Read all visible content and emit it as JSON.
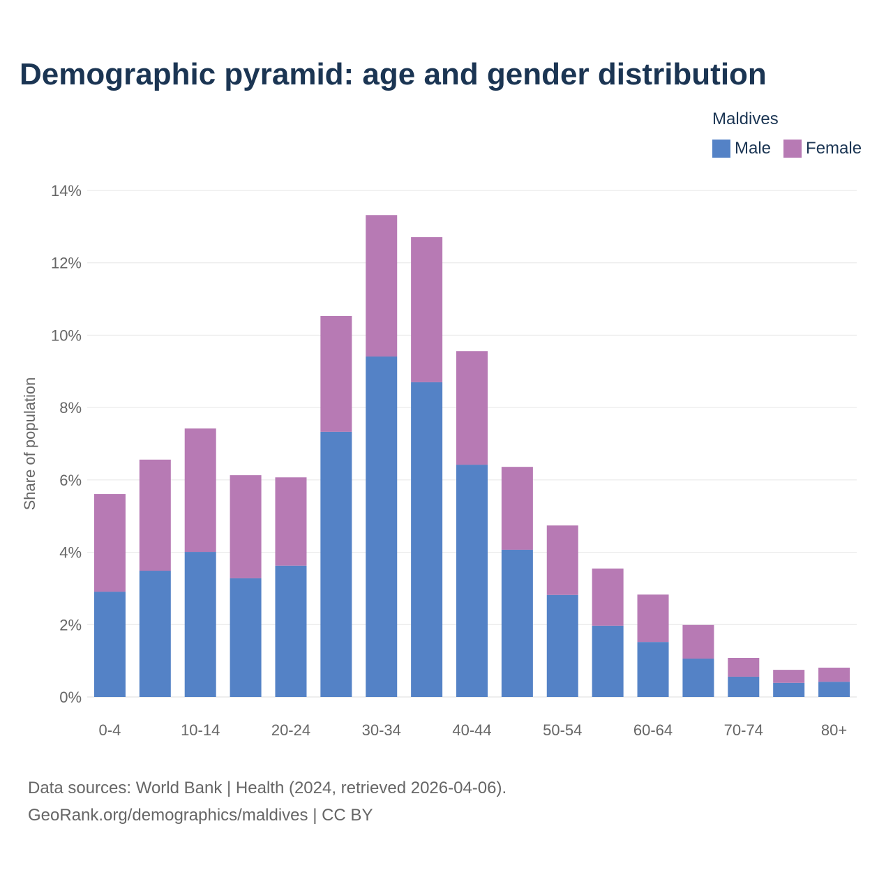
{
  "title": "Demographic pyramid: age and gender distribution",
  "legend": {
    "title": "Maldives",
    "items": [
      {
        "label": "Male",
        "color": "#5482C6"
      },
      {
        "label": "Female",
        "color": "#B77AB4"
      }
    ]
  },
  "source": {
    "line1": "Data sources: World Bank | Health (2024, retrieved 2026-04-06).",
    "line2": "GeoRank.org/demographics/maldives | CC BY"
  },
  "chart_data": {
    "type": "bar",
    "stacked": true,
    "title": "Demographic pyramid: age and gender distribution",
    "xlabel": "",
    "ylabel": "Share of population",
    "ylim": [
      0,
      14
    ],
    "yticks": [
      0,
      2,
      4,
      6,
      8,
      10,
      12,
      14
    ],
    "ytick_labels": [
      "0%",
      "2%",
      "4%",
      "6%",
      "8%",
      "10%",
      "12%",
      "14%"
    ],
    "grid": true,
    "legend_position": "top-right",
    "categories": [
      "0-4",
      "5-9",
      "10-14",
      "15-19",
      "20-24",
      "25-29",
      "30-34",
      "35-39",
      "40-44",
      "45-49",
      "50-54",
      "55-59",
      "60-64",
      "65-69",
      "70-74",
      "75-79",
      "80+"
    ],
    "xtick_labels_shown": [
      "0-4",
      "10-14",
      "20-24",
      "30-34",
      "40-44",
      "50-54",
      "60-64",
      "70-74",
      "80+"
    ],
    "series": [
      {
        "name": "Male",
        "color": "#5482C6",
        "values": [
          2.91,
          3.49,
          4.01,
          3.28,
          3.63,
          7.33,
          9.41,
          8.7,
          6.42,
          4.07,
          2.82,
          1.97,
          1.52,
          1.06,
          0.56,
          0.39,
          0.42
        ]
      },
      {
        "name": "Female",
        "color": "#B77AB4",
        "values": [
          2.7,
          3.07,
          3.41,
          2.85,
          2.44,
          3.2,
          3.91,
          4.01,
          3.14,
          2.29,
          1.92,
          1.58,
          1.31,
          0.93,
          0.52,
          0.36,
          0.39
        ]
      }
    ]
  }
}
